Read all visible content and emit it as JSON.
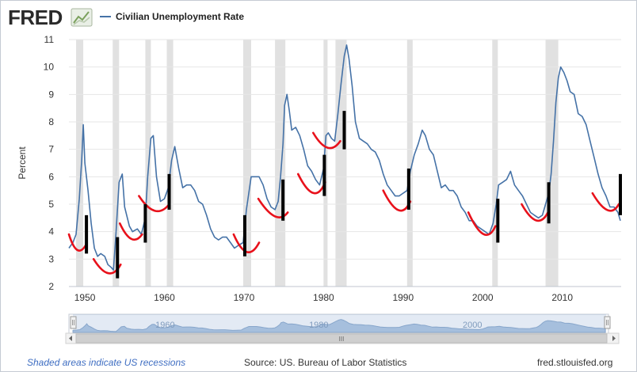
{
  "header": {
    "logo_text": "FRED",
    "legend_label": "Civilian Unemployment Rate",
    "series_color": "#4572a7"
  },
  "footer": {
    "note": "Shaded areas indicate US recessions",
    "source": "Source: US. Bureau of Labor Statistics",
    "site": "fred.stlouisfed.org"
  },
  "navigator": {
    "labels": [
      "1960",
      "1980",
      "2000"
    ],
    "scroll_grip": "III"
  },
  "chart_data": {
    "type": "line",
    "ylabel": "Percent",
    "ylim": [
      2,
      11
    ],
    "yticks": [
      2,
      3,
      4,
      5,
      6,
      7,
      8,
      9,
      10,
      11
    ],
    "xlim": [
      1948.0,
      2017.4
    ],
    "xticks": [
      1950,
      1960,
      1970,
      1980,
      1990,
      2000,
      2010
    ],
    "grid": true,
    "legend_position": "top-left",
    "recessions": [
      [
        1948.9,
        1949.8
      ],
      [
        1953.5,
        1954.3
      ],
      [
        1957.6,
        1958.3
      ],
      [
        1960.3,
        1961.1
      ],
      [
        1969.9,
        1970.9
      ],
      [
        1973.9,
        1975.2
      ],
      [
        1980.0,
        1980.5
      ],
      [
        1981.5,
        1982.9
      ],
      [
        1990.5,
        1991.2
      ],
      [
        2001.2,
        2001.9
      ],
      [
        2007.9,
        2009.5
      ]
    ],
    "series": [
      {
        "values": [
          [
            1948.0,
            3.4
          ],
          [
            1948.5,
            3.6
          ],
          [
            1948.9,
            3.9
          ],
          [
            1949.3,
            5.2
          ],
          [
            1949.6,
            6.6
          ],
          [
            1949.8,
            7.9
          ],
          [
            1950.0,
            6.5
          ],
          [
            1950.4,
            5.5
          ],
          [
            1950.8,
            4.3
          ],
          [
            1951.2,
            3.4
          ],
          [
            1951.6,
            3.1
          ],
          [
            1952.0,
            3.2
          ],
          [
            1952.5,
            3.1
          ],
          [
            1952.9,
            2.8
          ],
          [
            1953.3,
            2.7
          ],
          [
            1953.6,
            2.6
          ],
          [
            1953.9,
            3.9
          ],
          [
            1954.3,
            5.8
          ],
          [
            1954.7,
            6.1
          ],
          [
            1955.0,
            4.9
          ],
          [
            1955.6,
            4.2
          ],
          [
            1956.0,
            4.0
          ],
          [
            1956.6,
            4.1
          ],
          [
            1957.1,
            3.9
          ],
          [
            1957.6,
            4.5
          ],
          [
            1957.9,
            6.0
          ],
          [
            1958.3,
            7.4
          ],
          [
            1958.6,
            7.5
          ],
          [
            1959.0,
            6.0
          ],
          [
            1959.5,
            5.1
          ],
          [
            1960.0,
            5.2
          ],
          [
            1960.5,
            5.6
          ],
          [
            1960.9,
            6.6
          ],
          [
            1961.3,
            7.1
          ],
          [
            1961.8,
            6.3
          ],
          [
            1962.3,
            5.6
          ],
          [
            1962.8,
            5.7
          ],
          [
            1963.3,
            5.7
          ],
          [
            1963.8,
            5.5
          ],
          [
            1964.3,
            5.1
          ],
          [
            1964.8,
            5.0
          ],
          [
            1965.3,
            4.6
          ],
          [
            1965.8,
            4.1
          ],
          [
            1966.3,
            3.8
          ],
          [
            1966.8,
            3.7
          ],
          [
            1967.3,
            3.8
          ],
          [
            1967.8,
            3.8
          ],
          [
            1968.3,
            3.6
          ],
          [
            1968.8,
            3.4
          ],
          [
            1969.3,
            3.5
          ],
          [
            1969.9,
            3.6
          ],
          [
            1970.3,
            4.8
          ],
          [
            1970.6,
            5.4
          ],
          [
            1970.9,
            6.0
          ],
          [
            1971.4,
            6.0
          ],
          [
            1971.9,
            6.0
          ],
          [
            1972.4,
            5.7
          ],
          [
            1972.9,
            5.2
          ],
          [
            1973.4,
            4.9
          ],
          [
            1973.9,
            4.8
          ],
          [
            1974.3,
            5.1
          ],
          [
            1974.6,
            6.0
          ],
          [
            1974.9,
            7.2
          ],
          [
            1975.1,
            8.6
          ],
          [
            1975.4,
            9.0
          ],
          [
            1975.7,
            8.4
          ],
          [
            1976.0,
            7.7
          ],
          [
            1976.5,
            7.8
          ],
          [
            1977.0,
            7.5
          ],
          [
            1977.5,
            7.0
          ],
          [
            1978.0,
            6.4
          ],
          [
            1978.5,
            6.2
          ],
          [
            1979.0,
            5.9
          ],
          [
            1979.5,
            5.7
          ],
          [
            1980.0,
            6.3
          ],
          [
            1980.3,
            7.5
          ],
          [
            1980.6,
            7.6
          ],
          [
            1981.0,
            7.4
          ],
          [
            1981.4,
            7.3
          ],
          [
            1981.8,
            8.3
          ],
          [
            1982.2,
            9.4
          ],
          [
            1982.6,
            10.4
          ],
          [
            1982.9,
            10.8
          ],
          [
            1983.2,
            10.3
          ],
          [
            1983.6,
            9.3
          ],
          [
            1984.0,
            8.0
          ],
          [
            1984.5,
            7.4
          ],
          [
            1985.0,
            7.3
          ],
          [
            1985.5,
            7.2
          ],
          [
            1986.0,
            7.0
          ],
          [
            1986.5,
            6.9
          ],
          [
            1987.0,
            6.6
          ],
          [
            1987.5,
            6.1
          ],
          [
            1988.0,
            5.7
          ],
          [
            1988.5,
            5.5
          ],
          [
            1989.0,
            5.3
          ],
          [
            1989.5,
            5.3
          ],
          [
            1990.0,
            5.4
          ],
          [
            1990.5,
            5.5
          ],
          [
            1990.9,
            6.2
          ],
          [
            1991.4,
            6.8
          ],
          [
            1991.9,
            7.2
          ],
          [
            1992.4,
            7.7
          ],
          [
            1992.8,
            7.5
          ],
          [
            1993.3,
            7.0
          ],
          [
            1993.8,
            6.8
          ],
          [
            1994.3,
            6.2
          ],
          [
            1994.8,
            5.6
          ],
          [
            1995.3,
            5.7
          ],
          [
            1995.8,
            5.5
          ],
          [
            1996.3,
            5.5
          ],
          [
            1996.8,
            5.3
          ],
          [
            1997.3,
            4.9
          ],
          [
            1997.8,
            4.7
          ],
          [
            1998.3,
            4.4
          ],
          [
            1998.8,
            4.4
          ],
          [
            1999.3,
            4.2
          ],
          [
            1999.8,
            4.1
          ],
          [
            2000.3,
            4.0
          ],
          [
            2000.8,
            3.9
          ],
          [
            2001.3,
            4.3
          ],
          [
            2001.7,
            5.0
          ],
          [
            2002.0,
            5.7
          ],
          [
            2002.5,
            5.8
          ],
          [
            2003.0,
            5.9
          ],
          [
            2003.5,
            6.2
          ],
          [
            2004.0,
            5.7
          ],
          [
            2004.5,
            5.5
          ],
          [
            2005.0,
            5.3
          ],
          [
            2005.5,
            5.0
          ],
          [
            2006.0,
            4.7
          ],
          [
            2006.5,
            4.6
          ],
          [
            2007.0,
            4.5
          ],
          [
            2007.5,
            4.6
          ],
          [
            2007.9,
            5.0
          ],
          [
            2008.3,
            5.4
          ],
          [
            2008.6,
            6.1
          ],
          [
            2008.9,
            7.3
          ],
          [
            2009.2,
            8.7
          ],
          [
            2009.5,
            9.6
          ],
          [
            2009.8,
            10.0
          ],
          [
            2010.2,
            9.8
          ],
          [
            2010.6,
            9.5
          ],
          [
            2011.0,
            9.1
          ],
          [
            2011.5,
            9.0
          ],
          [
            2012.0,
            8.3
          ],
          [
            2012.5,
            8.2
          ],
          [
            2013.0,
            7.9
          ],
          [
            2013.5,
            7.3
          ],
          [
            2014.0,
            6.7
          ],
          [
            2014.5,
            6.1
          ],
          [
            2015.0,
            5.6
          ],
          [
            2015.5,
            5.3
          ],
          [
            2016.0,
            4.9
          ],
          [
            2016.5,
            4.9
          ],
          [
            2017.0,
            4.7
          ],
          [
            2017.3,
            4.4
          ]
        ]
      }
    ],
    "annotations": {
      "red_curves": [
        [
          1948.0,
          3.9,
          1949.0,
          3.2,
          1950.1,
          3.5
        ],
        [
          1951.1,
          3.0,
          1953.1,
          2.3,
          1954.5,
          2.8
        ],
        [
          1954.4,
          4.3,
          1955.9,
          3.6,
          1957.2,
          3.9
        ],
        [
          1956.8,
          5.3,
          1958.9,
          4.6,
          1960.6,
          5.0
        ],
        [
          1968.7,
          3.9,
          1970.4,
          3.0,
          1971.9,
          3.6
        ],
        [
          1971.8,
          5.2,
          1974.1,
          4.4,
          1975.5,
          4.7
        ],
        [
          1976.8,
          6.1,
          1978.9,
          5.1,
          1980.2,
          5.8
        ],
        [
          1978.7,
          7.6,
          1980.6,
          6.9,
          1982.1,
          7.3
        ],
        [
          1987.5,
          5.5,
          1989.6,
          4.5,
          1990.9,
          5.1
        ],
        [
          1998.2,
          4.7,
          2000.3,
          3.6,
          2001.6,
          4.2
        ],
        [
          2004.9,
          5.0,
          2006.9,
          4.2,
          2008.2,
          4.7
        ],
        [
          2013.8,
          5.4,
          2015.9,
          4.6,
          2017.1,
          5.0
        ]
      ],
      "black_bars": [
        [
          1950.2,
          3.2,
          4.6
        ],
        [
          1954.1,
          2.3,
          3.8
        ],
        [
          1957.6,
          3.6,
          5.0
        ],
        [
          1960.6,
          4.8,
          6.1
        ],
        [
          1970.1,
          3.1,
          4.6
        ],
        [
          1974.9,
          4.4,
          5.9
        ],
        [
          1980.1,
          5.3,
          6.8
        ],
        [
          1982.6,
          7.0,
          8.4
        ],
        [
          1990.7,
          4.8,
          6.3
        ],
        [
          2001.9,
          3.6,
          5.2
        ],
        [
          2008.3,
          4.3,
          5.8
        ],
        [
          2017.3,
          4.6,
          6.1
        ]
      ]
    }
  }
}
